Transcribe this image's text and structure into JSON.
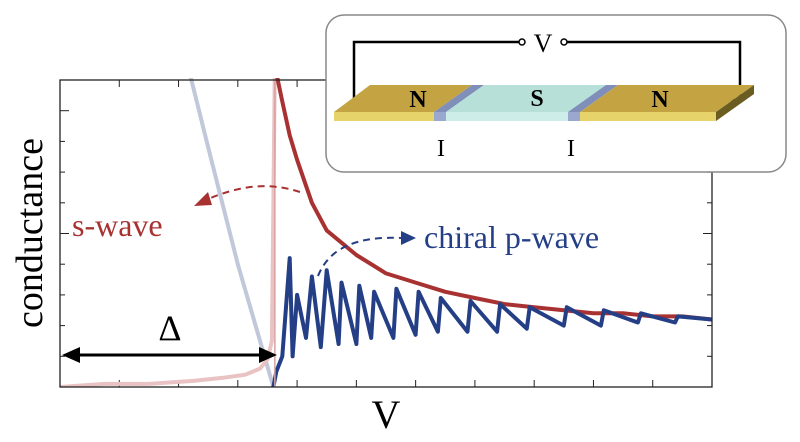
{
  "chart_data": {
    "type": "line",
    "title": "",
    "xlabel": "V",
    "ylabel": "conductance",
    "xlim": [
      0,
      4.4
    ],
    "ylim": [
      0,
      1.0
    ],
    "grid": false,
    "gap": {
      "label": "Δ",
      "from": 0,
      "to": 1.45
    },
    "series": [
      {
        "name": "s-wave",
        "color": "#a83232",
        "x": [
          0,
          0.3,
          0.6,
          0.9,
          1.1,
          1.25,
          1.35,
          1.4,
          1.43,
          1.45,
          1.47,
          1.5,
          1.55,
          1.6,
          1.7,
          1.8,
          2.0,
          2.2,
          2.4,
          2.6,
          2.8,
          3.0,
          3.2,
          3.4,
          3.6,
          3.8,
          4.0,
          4.2,
          4.4
        ],
        "y": [
          0.0,
          0.01,
          0.01,
          0.02,
          0.03,
          0.04,
          0.06,
          0.09,
          0.15,
          1.06,
          1.0,
          0.93,
          0.82,
          0.74,
          0.6,
          0.51,
          0.43,
          0.37,
          0.34,
          0.31,
          0.29,
          0.27,
          0.26,
          0.25,
          0.24,
          0.24,
          0.23,
          0.23,
          0.22
        ]
      },
      {
        "name": "chiral p-wave",
        "color": "#243f86",
        "x": [
          1.44,
          1.46,
          1.5,
          1.55,
          1.57,
          1.6,
          1.66,
          1.7,
          1.76,
          1.8,
          1.88,
          1.9,
          2.0,
          2.02,
          2.1,
          2.12,
          2.25,
          2.27,
          2.4,
          2.42,
          2.55,
          2.57,
          2.75,
          2.77,
          2.95,
          2.97,
          3.15,
          3.17,
          3.4,
          3.42,
          3.65,
          3.67,
          3.9,
          3.92,
          4.15,
          4.17,
          4.4
        ],
        "y": [
          0.0,
          0.05,
          0.1,
          0.42,
          0.1,
          0.3,
          0.16,
          0.36,
          0.13,
          0.38,
          0.14,
          0.34,
          0.14,
          0.33,
          0.16,
          0.31,
          0.16,
          0.32,
          0.17,
          0.31,
          0.18,
          0.29,
          0.18,
          0.28,
          0.18,
          0.27,
          0.19,
          0.26,
          0.2,
          0.26,
          0.2,
          0.25,
          0.21,
          0.24,
          0.21,
          0.23,
          0.22
        ]
      }
    ],
    "guide_curve": {
      "color": "#c0c8da",
      "x": [
        0.82,
        1.0,
        1.2,
        1.44
      ],
      "y": [
        1.13,
        0.78,
        0.4,
        0.0
      ]
    },
    "inset": {
      "voltage_label": "V",
      "layers": [
        "N",
        "S",
        "N"
      ],
      "barriers": [
        "I",
        "I"
      ],
      "colors": {
        "normal_metal": "#c4a342",
        "superconductor": "#b6e0d8",
        "barrier": "#7f8fb9"
      }
    }
  }
}
